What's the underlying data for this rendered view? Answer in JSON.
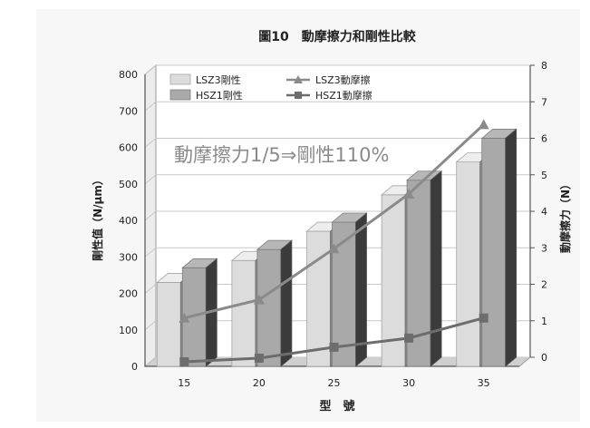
{
  "chart_data": {
    "type": "bar",
    "title": "圖10　動摩擦力和剛性比較",
    "xlabel": "型　號",
    "ylabel_left": "剛性值（N/μm）",
    "ylabel_right": "動摩擦力（N）",
    "annotation": "動摩擦力1/5⇒剛性110%",
    "categories": [
      "15",
      "20",
      "25",
      "30",
      "35"
    ],
    "y_left": {
      "min": 0,
      "max": 800,
      "step": 100,
      "ticks": [
        "0",
        "100",
        "200",
        "300",
        "400",
        "500",
        "600",
        "700",
        "800"
      ]
    },
    "y_right": {
      "min": 0,
      "max": 8,
      "step": 1,
      "ticks": [
        "0",
        "1",
        "2",
        "3",
        "4",
        "5",
        "6",
        "7",
        "8"
      ]
    },
    "bar_series": [
      {
        "name": "LSZ3剛性",
        "values": [
          230,
          290,
          370,
          470,
          560
        ],
        "color": "#dcdcdc"
      },
      {
        "name": "HSZ1剛性",
        "values": [
          270,
          320,
          395,
          510,
          625
        ],
        "color": "#a9a9a9"
      }
    ],
    "line_series": [
      {
        "name": "LSZ3動摩擦",
        "values": [
          1.2,
          1.7,
          3.1,
          4.6,
          6.5
        ],
        "marker": "triangle",
        "color": "#8a8a8a"
      },
      {
        "name": "HSZ1動摩擦",
        "values": [
          0.0,
          0.1,
          0.4,
          0.65,
          1.2
        ],
        "marker": "square",
        "color": "#6d6d6d"
      }
    ],
    "legend_position": "top-left",
    "grid": true
  }
}
